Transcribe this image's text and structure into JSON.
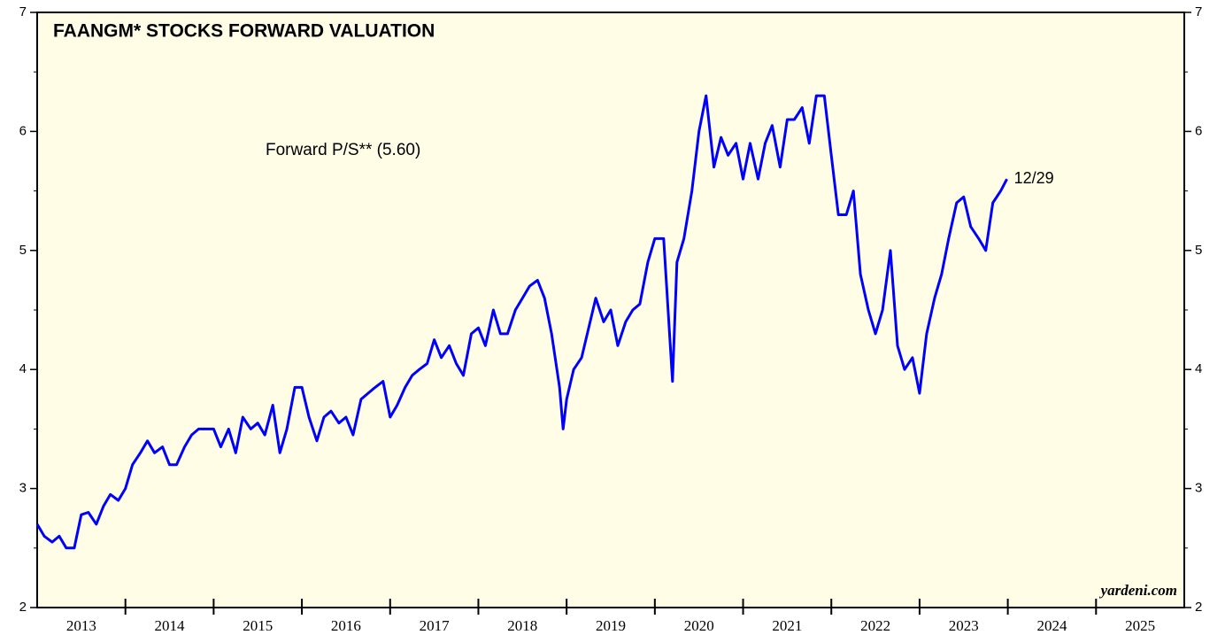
{
  "chart_data": {
    "type": "line",
    "title": "FAANGM* STOCKS FORWARD VALUATION",
    "annotation": "Forward P/S** (5.60)",
    "end_label": "12/29",
    "source": "yardeni.com",
    "x": [
      2013.0,
      2013.08,
      2013.17,
      2013.25,
      2013.33,
      2013.42,
      2013.5,
      2013.58,
      2013.67,
      2013.75,
      2013.83,
      2013.92,
      2014.0,
      2014.08,
      2014.17,
      2014.25,
      2014.33,
      2014.42,
      2014.5,
      2014.58,
      2014.67,
      2014.75,
      2014.83,
      2014.92,
      2015.0,
      2015.08,
      2015.17,
      2015.25,
      2015.33,
      2015.42,
      2015.5,
      2015.58,
      2015.67,
      2015.75,
      2015.83,
      2015.92,
      2016.0,
      2016.08,
      2016.17,
      2016.25,
      2016.33,
      2016.42,
      2016.5,
      2016.58,
      2016.67,
      2016.75,
      2016.83,
      2016.92,
      2017.0,
      2017.08,
      2017.17,
      2017.25,
      2017.33,
      2017.42,
      2017.5,
      2017.58,
      2017.67,
      2017.75,
      2017.83,
      2017.92,
      2018.0,
      2018.08,
      2018.17,
      2018.25,
      2018.33,
      2018.42,
      2018.5,
      2018.58,
      2018.67,
      2018.75,
      2018.83,
      2018.92,
      2018.96,
      2019.0,
      2019.08,
      2019.17,
      2019.25,
      2019.33,
      2019.42,
      2019.5,
      2019.58,
      2019.67,
      2019.75,
      2019.83,
      2019.92,
      2020.0,
      2020.1,
      2020.2,
      2020.25,
      2020.33,
      2020.42,
      2020.5,
      2020.58,
      2020.67,
      2020.75,
      2020.83,
      2020.92,
      2021.0,
      2021.08,
      2021.17,
      2021.25,
      2021.33,
      2021.42,
      2021.5,
      2021.58,
      2021.67,
      2021.75,
      2021.83,
      2021.92,
      2022.0,
      2022.08,
      2022.17,
      2022.25,
      2022.33,
      2022.42,
      2022.5,
      2022.58,
      2022.67,
      2022.75,
      2022.83,
      2022.92,
      2023.0,
      2023.08,
      2023.17,
      2023.25,
      2023.33,
      2023.42,
      2023.5,
      2023.58,
      2023.67,
      2023.75,
      2023.83,
      2023.92,
      2023.99
    ],
    "series": [
      {
        "name": "Forward P/S",
        "color": "#0000ff",
        "values": [
          2.7,
          2.6,
          2.55,
          2.6,
          2.5,
          2.5,
          2.78,
          2.8,
          2.7,
          2.85,
          2.95,
          2.9,
          3.0,
          3.2,
          3.3,
          3.4,
          3.3,
          3.35,
          3.2,
          3.2,
          3.35,
          3.45,
          3.5,
          3.5,
          3.5,
          3.35,
          3.5,
          3.3,
          3.6,
          3.5,
          3.55,
          3.45,
          3.7,
          3.3,
          3.5,
          3.85,
          3.85,
          3.6,
          3.4,
          3.6,
          3.65,
          3.55,
          3.6,
          3.45,
          3.75,
          3.8,
          3.85,
          3.9,
          3.6,
          3.7,
          3.85,
          3.95,
          4.0,
          4.05,
          4.25,
          4.1,
          4.2,
          4.05,
          3.95,
          4.3,
          4.35,
          4.2,
          4.5,
          4.3,
          4.3,
          4.5,
          4.6,
          4.7,
          4.75,
          4.6,
          4.3,
          3.85,
          3.5,
          3.75,
          4.0,
          4.1,
          4.35,
          4.6,
          4.4,
          4.5,
          4.2,
          4.4,
          4.5,
          4.55,
          4.9,
          5.1,
          5.1,
          3.9,
          4.9,
          5.1,
          5.5,
          6.0,
          6.3,
          5.7,
          5.95,
          5.8,
          5.9,
          5.6,
          5.9,
          5.6,
          5.9,
          6.05,
          5.7,
          6.1,
          6.1,
          6.2,
          5.9,
          6.3,
          6.3,
          5.8,
          5.3,
          5.3,
          5.5,
          4.8,
          4.5,
          4.3,
          4.5,
          5.0,
          4.2,
          4.0,
          4.1,
          3.8,
          4.3,
          4.6,
          4.8,
          5.1,
          5.4,
          5.45,
          5.2,
          5.1,
          5.0,
          5.4,
          5.5,
          5.6
        ]
      }
    ],
    "xlim": [
      2013,
      2026
    ],
    "xticks": [
      2014,
      2015,
      2016,
      2017,
      2018,
      2019,
      2020,
      2021,
      2022,
      2023,
      2024,
      2025
    ],
    "year_labels": [
      "2013",
      "2014",
      "2015",
      "2016",
      "2017",
      "2018",
      "2019",
      "2020",
      "2021",
      "2022",
      "2023",
      "2024",
      "2025"
    ],
    "ylim": [
      2,
      7
    ],
    "yticks": [
      2,
      3,
      4,
      5,
      6,
      7
    ],
    "yminorticks": [
      2.5,
      3.5,
      4.5,
      5.5,
      6.5
    ]
  }
}
